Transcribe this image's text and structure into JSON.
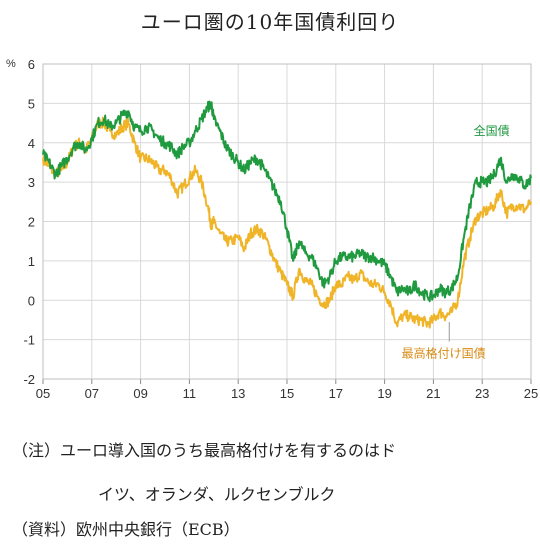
{
  "title": "ユーロ圏の10年国債利回り",
  "notes": {
    "note_line1": "（注）ユーロ導入国のうち最高格付けを有するのはド",
    "note_line2": "イツ、オランダ、ルクセンブルク",
    "source": "（資料）欧州中央銀行（ECB）"
  },
  "chart_data": {
    "type": "line",
    "unit": "%",
    "x_ticks": [
      "05",
      "07",
      "09",
      "11",
      "13",
      "15",
      "17",
      "19",
      "21",
      "23",
      "25"
    ],
    "y_ticks": [
      "6",
      "5",
      "4",
      "3",
      "2",
      "1",
      "0",
      "-1",
      "-2"
    ],
    "xlim": [
      2005,
      2025
    ],
    "ylim": [
      -2,
      6
    ],
    "grid": true,
    "series": [
      {
        "name": "全国債",
        "color": "#1f9a3f",
        "x": [
          2005.0,
          2005.25,
          2005.5,
          2005.75,
          2006.0,
          2006.25,
          2006.5,
          2006.75,
          2007.0,
          2007.25,
          2007.5,
          2007.75,
          2008.0,
          2008.25,
          2008.5,
          2008.75,
          2009.0,
          2009.25,
          2009.5,
          2009.75,
          2010.0,
          2010.25,
          2010.5,
          2010.75,
          2011.0,
          2011.25,
          2011.5,
          2011.75,
          2011.9,
          2012.0,
          2012.25,
          2012.5,
          2012.75,
          2013.0,
          2013.25,
          2013.5,
          2013.75,
          2014.0,
          2014.25,
          2014.5,
          2014.75,
          2015.0,
          2015.25,
          2015.5,
          2015.75,
          2016.0,
          2016.25,
          2016.5,
          2016.75,
          2017.0,
          2017.25,
          2017.5,
          2017.75,
          2018.0,
          2018.25,
          2018.5,
          2018.75,
          2019.0,
          2019.25,
          2019.5,
          2019.75,
          2020.0,
          2020.25,
          2020.5,
          2020.75,
          2021.0,
          2021.25,
          2021.5,
          2021.75,
          2022.0,
          2022.25,
          2022.5,
          2022.75,
          2023.0,
          2023.25,
          2023.5,
          2023.75,
          2024.0,
          2024.25,
          2024.5,
          2024.75,
          2025.0
        ],
        "values": [
          3.7,
          3.5,
          3.2,
          3.4,
          3.6,
          3.9,
          4.0,
          3.8,
          4.1,
          4.5,
          4.6,
          4.4,
          4.5,
          4.7,
          4.8,
          4.4,
          4.3,
          4.4,
          4.3,
          4.1,
          4.0,
          3.9,
          3.7,
          3.9,
          4.0,
          4.3,
          4.6,
          4.9,
          5.0,
          4.6,
          4.3,
          3.9,
          3.7,
          3.5,
          3.3,
          3.5,
          3.6,
          3.4,
          3.1,
          2.8,
          2.5,
          1.8,
          1.0,
          1.5,
          1.2,
          1.1,
          0.8,
          0.4,
          0.6,
          1.0,
          1.1,
          1.1,
          1.1,
          1.2,
          1.1,
          1.1,
          1.0,
          0.9,
          0.6,
          0.2,
          0.3,
          0.2,
          0.4,
          0.2,
          0.1,
          0.1,
          0.3,
          0.2,
          0.3,
          0.6,
          1.6,
          2.4,
          3.0,
          3.0,
          3.0,
          3.2,
          3.6,
          3.0,
          3.2,
          3.1,
          2.9,
          3.1
        ]
      },
      {
        "name": "最高格付け国債",
        "color": "#f0b428",
        "x": [
          2005.0,
          2005.25,
          2005.5,
          2005.75,
          2006.0,
          2006.25,
          2006.5,
          2006.75,
          2007.0,
          2007.25,
          2007.5,
          2007.75,
          2008.0,
          2008.25,
          2008.5,
          2008.75,
          2009.0,
          2009.25,
          2009.5,
          2009.75,
          2010.0,
          2010.25,
          2010.5,
          2010.75,
          2011.0,
          2011.25,
          2011.5,
          2011.75,
          2011.9,
          2012.0,
          2012.25,
          2012.5,
          2012.75,
          2013.0,
          2013.25,
          2013.5,
          2013.75,
          2014.0,
          2014.25,
          2014.5,
          2014.75,
          2015.0,
          2015.25,
          2015.5,
          2015.75,
          2016.0,
          2016.25,
          2016.5,
          2016.75,
          2017.0,
          2017.25,
          2017.5,
          2017.75,
          2018.0,
          2018.25,
          2018.5,
          2018.75,
          2019.0,
          2019.25,
          2019.5,
          2019.75,
          2020.0,
          2020.25,
          2020.5,
          2020.75,
          2021.0,
          2021.25,
          2021.5,
          2021.75,
          2022.0,
          2022.25,
          2022.5,
          2022.75,
          2023.0,
          2023.25,
          2023.5,
          2023.75,
          2024.0,
          2024.25,
          2024.5,
          2024.75,
          2025.0
        ],
        "values": [
          3.6,
          3.4,
          3.2,
          3.3,
          3.5,
          3.9,
          4.0,
          3.8,
          4.1,
          4.5,
          4.5,
          4.3,
          4.2,
          4.4,
          4.5,
          4.0,
          3.6,
          3.6,
          3.5,
          3.3,
          3.3,
          3.1,
          2.7,
          2.9,
          3.1,
          3.3,
          3.0,
          2.4,
          1.9,
          2.0,
          1.7,
          1.5,
          1.5,
          1.6,
          1.3,
          1.7,
          1.8,
          1.7,
          1.4,
          1.0,
          0.7,
          0.4,
          0.1,
          0.8,
          0.5,
          0.4,
          0.1,
          -0.1,
          0.0,
          0.4,
          0.4,
          0.6,
          0.5,
          0.7,
          0.5,
          0.4,
          0.4,
          0.2,
          -0.1,
          -0.6,
          -0.4,
          -0.4,
          -0.5,
          -0.5,
          -0.6,
          -0.5,
          -0.3,
          -0.4,
          -0.3,
          0.0,
          1.0,
          1.6,
          2.1,
          2.2,
          2.3,
          2.4,
          2.8,
          2.2,
          2.4,
          2.4,
          2.3,
          2.5
        ]
      }
    ],
    "series_labels": [
      "全国債",
      "最高格付け国債"
    ]
  }
}
